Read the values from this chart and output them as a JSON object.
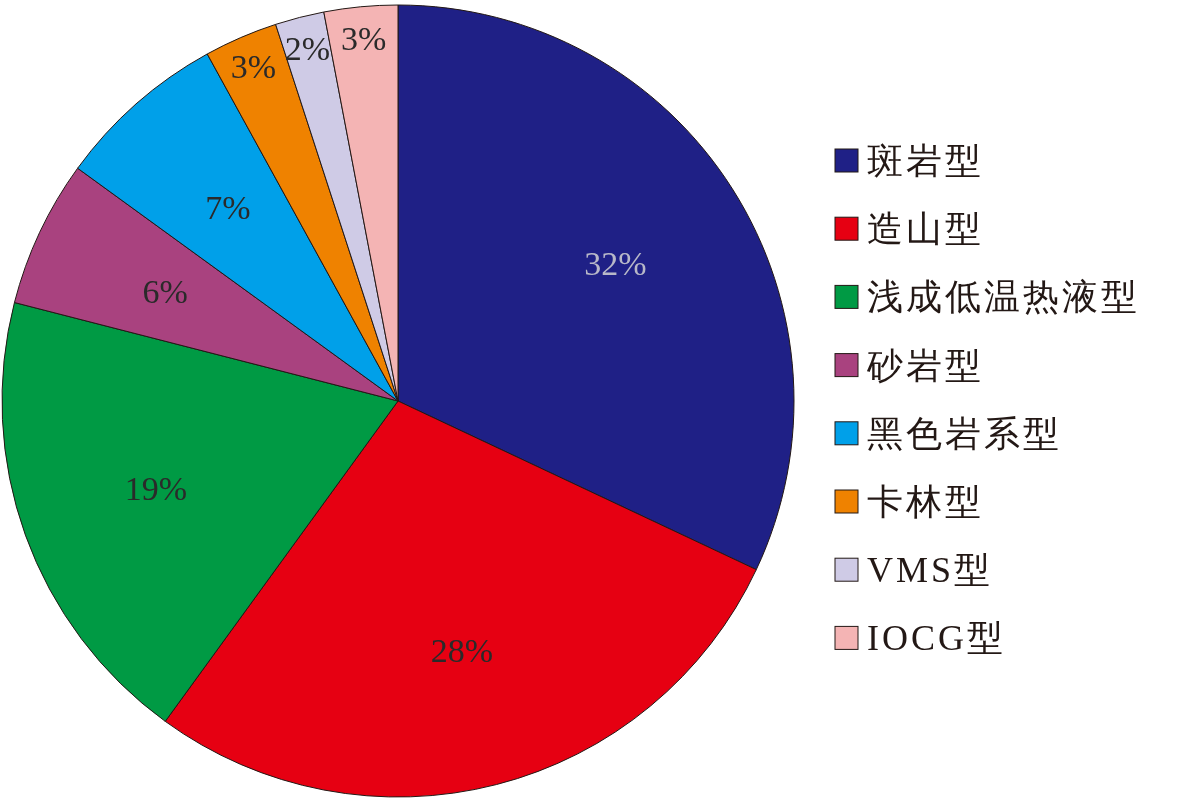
{
  "chart_data": {
    "type": "pie",
    "categories": [
      "斑岩型",
      "造山型",
      "浅成低温热液型",
      "砂岩型",
      "黑色岩系型",
      "卡林型",
      "VMS型",
      "IOCG型"
    ],
    "values": [
      32,
      28,
      19,
      6,
      7,
      3,
      2,
      3
    ],
    "value_labels": [
      "32%",
      "28%",
      "19%",
      "6%",
      "7%",
      "3%",
      "2%",
      "3%"
    ],
    "colors": [
      "#1f2086",
      "#e60012",
      "#009a44",
      "#a9427f",
      "#00a0e9",
      "#ef8200",
      "#cfcbe6",
      "#f4b4b4"
    ],
    "legend": "right"
  }
}
